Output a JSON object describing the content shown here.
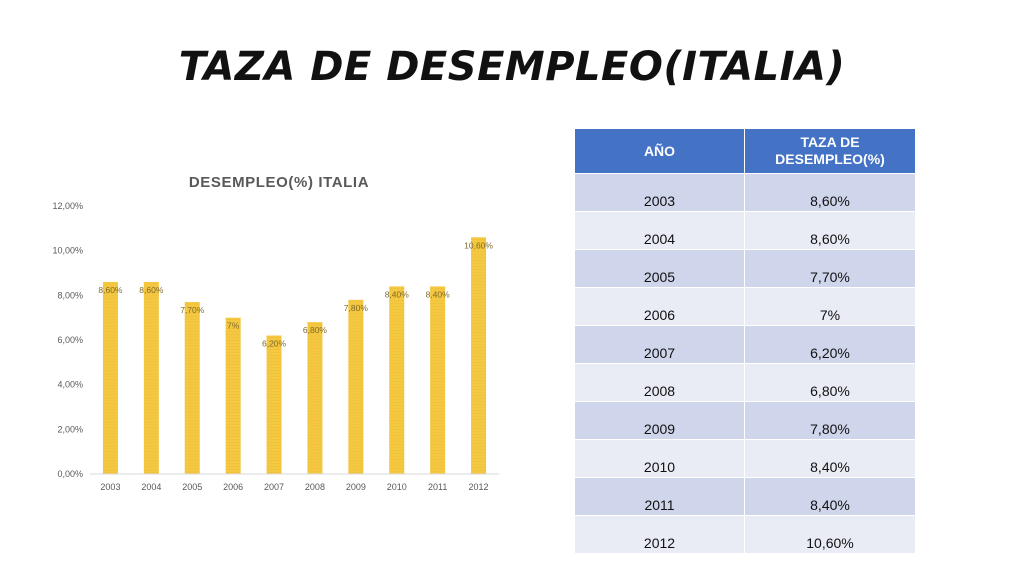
{
  "slide": {
    "title": "TAZA DE DESEMPLEO(ITALIA)"
  },
  "colors": {
    "bar": "#f5c842",
    "table_header": "#4472c4",
    "table_row_dark": "#cfd5ea",
    "table_row_light": "#e9ebf5",
    "axis_text": "#595959",
    "data_label": "#7f6a2a"
  },
  "chart_data": {
    "type": "bar",
    "title": "DESEMPLEO(%) ITALIA",
    "xlabel": "",
    "ylabel": "",
    "categories": [
      "2003",
      "2004",
      "2005",
      "2006",
      "2007",
      "2008",
      "2009",
      "2010",
      "2011",
      "2012"
    ],
    "values": [
      8.6,
      8.6,
      7.7,
      7.0,
      6.2,
      6.8,
      7.8,
      8.4,
      8.4,
      10.6
    ],
    "data_labels": [
      "8,60%",
      "8,60%",
      "7,70%",
      "7%",
      "6,20%",
      "6,80%",
      "7,80%",
      "8,40%",
      "8,40%",
      "10,60%"
    ],
    "ylim": [
      0,
      12
    ],
    "yticks": [
      0,
      2,
      4,
      6,
      8,
      10,
      12
    ],
    "ytick_labels": [
      "0,00%",
      "2,00%",
      "4,00%",
      "6,00%",
      "8,00%",
      "10,00%",
      "12,00%"
    ],
    "grid": false,
    "legend": "none"
  },
  "table": {
    "headers": [
      "AÑO",
      "TAZA DE DESEMPLEO(%)"
    ],
    "rows": [
      [
        "2003",
        "8,60%"
      ],
      [
        "2004",
        "8,60%"
      ],
      [
        "2005",
        "7,70%"
      ],
      [
        "2006",
        "7%"
      ],
      [
        "2007",
        "6,20%"
      ],
      [
        "2008",
        "6,80%"
      ],
      [
        "2009",
        "7,80%"
      ],
      [
        "2010",
        "8,40%"
      ],
      [
        "2011",
        "8,40%"
      ],
      [
        "2012",
        "10,60%"
      ]
    ]
  }
}
